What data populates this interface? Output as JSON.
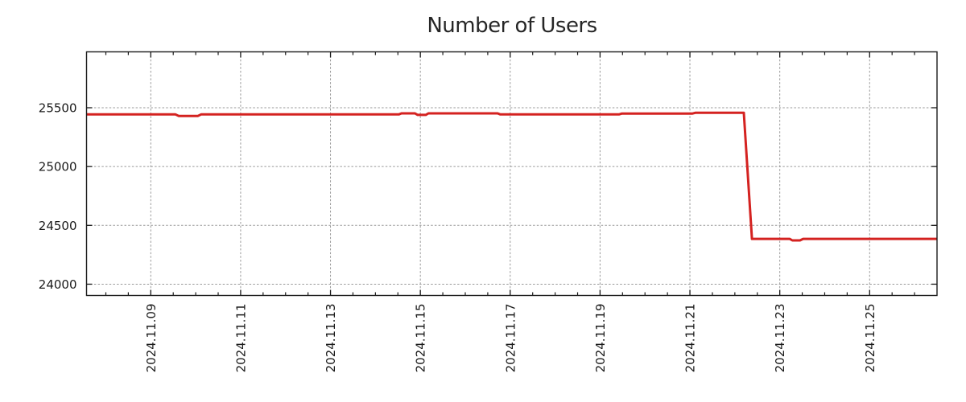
{
  "chart_data": {
    "type": "line",
    "title": "Number of Users",
    "xlabel": "",
    "ylabel": "",
    "x_axis": {
      "unit": "date",
      "range_days": [
        7.57,
        26.5
      ],
      "major_ticks": [
        {
          "day": 9,
          "label": "2024.11.09"
        },
        {
          "day": 11,
          "label": "2024.11.11"
        },
        {
          "day": 13,
          "label": "2024.11.13"
        },
        {
          "day": 15,
          "label": "2024.11.15"
        },
        {
          "day": 17,
          "label": "2024.11.17"
        },
        {
          "day": 19,
          "label": "2024.11.19"
        },
        {
          "day": 21,
          "label": "2024.11.21"
        },
        {
          "day": 23,
          "label": "2024.11.23"
        },
        {
          "day": 25,
          "label": "2024.11.25"
        }
      ],
      "minor_tick_step_days": 0.5,
      "label_rotation_deg": -90
    },
    "y_axis": {
      "range": [
        23904,
        25975
      ],
      "major_ticks": [
        {
          "value": 24000,
          "label": "24000"
        },
        {
          "value": 24500,
          "label": "24500"
        },
        {
          "value": 25000,
          "label": "25000"
        },
        {
          "value": 25500,
          "label": "25500"
        }
      ]
    },
    "grid": {
      "shown": true,
      "style": "dotted",
      "at": "major-ticks"
    },
    "legend": {
      "shown": false
    },
    "series": [
      {
        "name": "number-of-users",
        "color": "#d42220",
        "line_width": 3,
        "points_day_value": [
          [
            7.57,
            25443
          ],
          [
            9.55,
            25443
          ],
          [
            9.62,
            25430
          ],
          [
            10.05,
            25430
          ],
          [
            10.12,
            25443
          ],
          [
            14.52,
            25443
          ],
          [
            14.58,
            25452
          ],
          [
            14.88,
            25452
          ],
          [
            14.94,
            25439
          ],
          [
            15.12,
            25439
          ],
          [
            15.18,
            25452
          ],
          [
            16.72,
            25452
          ],
          [
            16.78,
            25443
          ],
          [
            19.42,
            25443
          ],
          [
            19.48,
            25450
          ],
          [
            21.05,
            25450
          ],
          [
            21.12,
            25457
          ],
          [
            22.2,
            25457
          ],
          [
            22.38,
            24385
          ],
          [
            23.22,
            24385
          ],
          [
            23.28,
            24372
          ],
          [
            23.45,
            24372
          ],
          [
            23.52,
            24385
          ],
          [
            26.5,
            24385
          ]
        ]
      }
    ]
  },
  "colors": {
    "series_red": "#d42220",
    "grid_gray": "#999999",
    "border_black": "#1a1a1a",
    "title_text": "#262626",
    "tick_text": "#1a1a1a",
    "background": "#ffffff"
  }
}
